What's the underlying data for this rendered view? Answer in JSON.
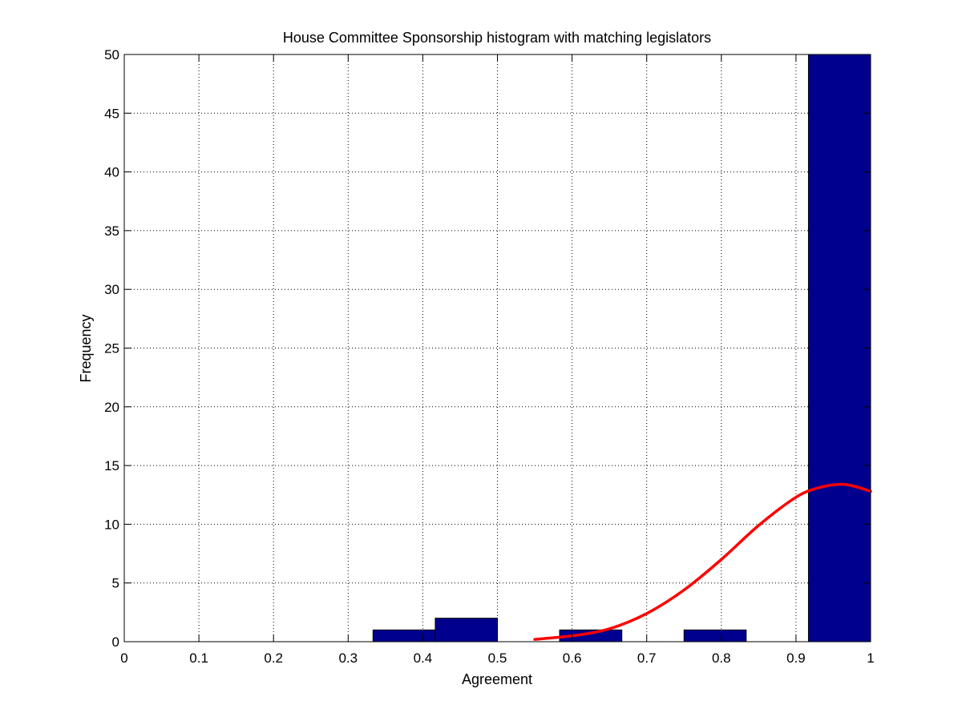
{
  "chart_data": {
    "type": "bar",
    "title": "House Committee Sponsorship histogram with matching legislators",
    "xlabel": "Agreement",
    "ylabel": "Frequency",
    "xlim": [
      0,
      1
    ],
    "ylim": [
      0,
      50
    ],
    "xticks": [
      "0",
      "0.1",
      "0.2",
      "0.3",
      "0.4",
      "0.5",
      "0.6",
      "0.7",
      "0.8",
      "0.9",
      "1"
    ],
    "yticks": [
      "0",
      "5",
      "10",
      "15",
      "20",
      "25",
      "30",
      "35",
      "40",
      "45",
      "50"
    ],
    "grid": true,
    "bars": [
      {
        "x0": 0.3333,
        "x1": 0.4167,
        "value": 1
      },
      {
        "x0": 0.4167,
        "x1": 0.5,
        "value": 2
      },
      {
        "x0": 0.5833,
        "x1": 0.6667,
        "value": 1
      },
      {
        "x0": 0.75,
        "x1": 0.8333,
        "value": 1
      },
      {
        "x0": 0.9167,
        "x1": 1.0,
        "value": 50
      }
    ],
    "fit_curve": {
      "x": [
        0.55,
        0.6,
        0.65,
        0.7,
        0.75,
        0.8,
        0.85,
        0.9,
        0.93,
        0.96,
        0.98,
        1.0
      ],
      "y": [
        0.2,
        0.5,
        1.1,
        2.4,
        4.4,
        7.0,
        9.9,
        12.3,
        13.1,
        13.4,
        13.2,
        12.8
      ]
    },
    "colors": {
      "bar": "#00008f",
      "curve": "#ff0000",
      "grid": "#000000"
    }
  }
}
